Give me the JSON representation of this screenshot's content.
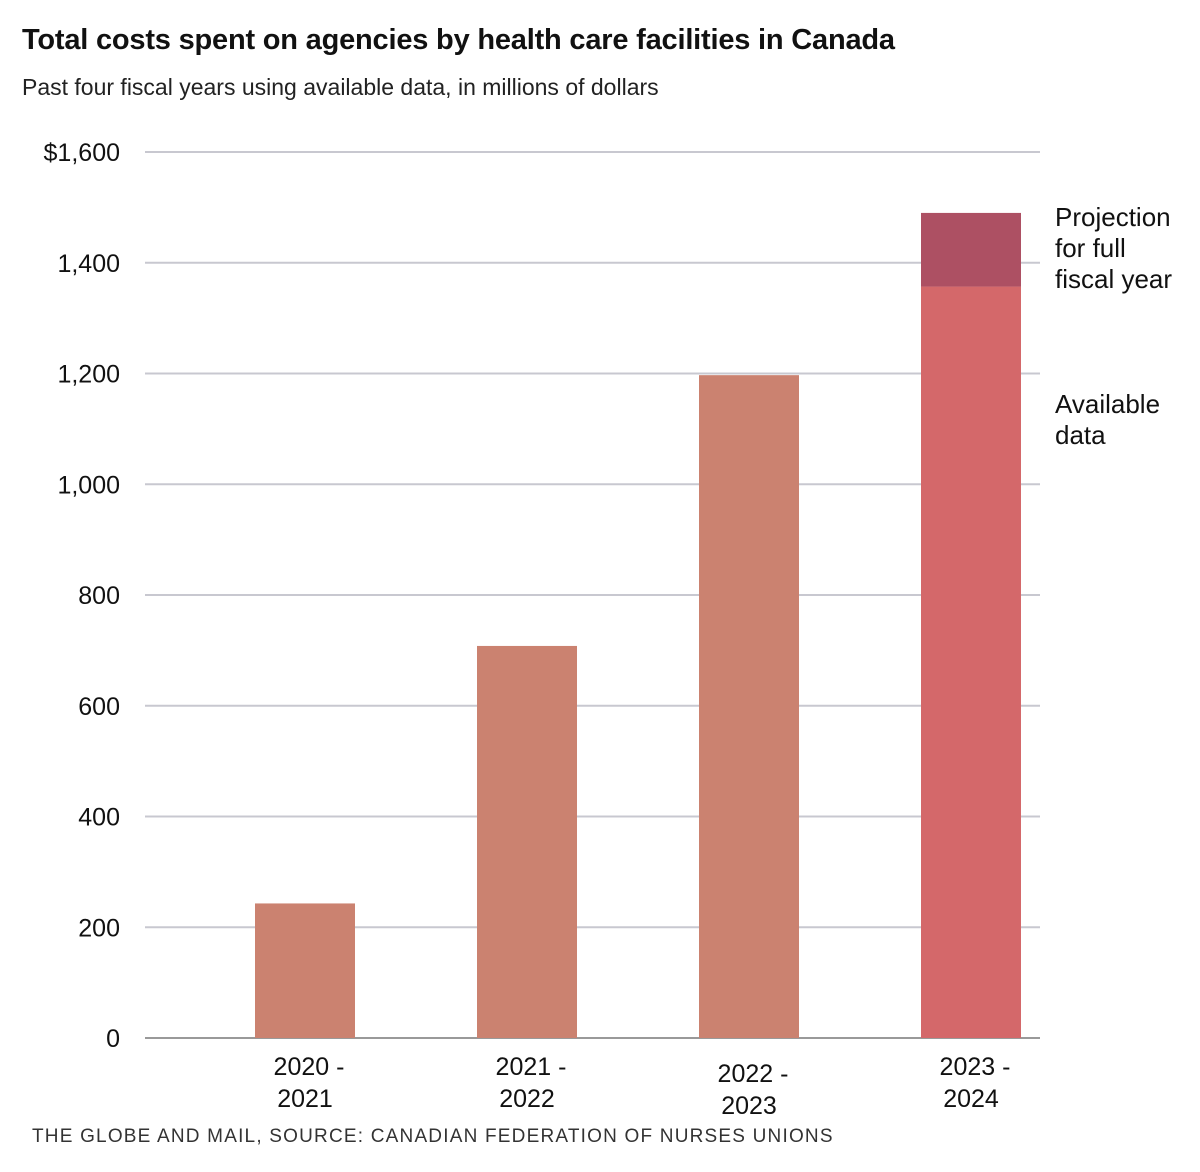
{
  "chart_data": {
    "type": "bar",
    "title": "Total costs spent on agencies by health care facilities in Canada",
    "subtitle": "Past four fiscal years using available data, in millions of dollars",
    "categories": [
      "2020 - 2021",
      "2021 - 2022",
      "2022 - 2023",
      "2023 - 2024"
    ],
    "category_lines": [
      [
        "2020 -",
        "2021"
      ],
      [
        "2021 -",
        "2022"
      ],
      [
        "2022 -",
        "2023"
      ],
      [
        "2023 -",
        "2024"
      ]
    ],
    "series": [
      {
        "name": "Available data",
        "values": [
          243,
          708,
          1197,
          1357
        ],
        "color": "#cb8270",
        "highlight_color": "#d4686a"
      },
      {
        "name": "Projection for full fiscal year",
        "values": [
          0,
          0,
          0,
          133
        ],
        "color": "#ad5063"
      }
    ],
    "y_ticks": [
      0,
      200,
      400,
      600,
      800,
      1000,
      1200,
      1400,
      1600
    ],
    "y_tick_labels": [
      "0",
      "200",
      "400",
      "600",
      "800",
      "1,000",
      "1,200",
      "1,400",
      "$1,600"
    ],
    "ylim": [
      0,
      1600
    ],
    "xlabel": "",
    "ylabel": "",
    "grid": true,
    "annotations": {
      "projection": [
        "Projection",
        "for full",
        "fiscal year"
      ],
      "available": [
        "Available",
        "data"
      ]
    }
  },
  "colors": {
    "grid": "#c8c8d0",
    "baseline": "#999999"
  },
  "source": "THE GLOBE AND MAIL, SOURCE: CANADIAN FEDERATION OF NURSES UNIONS"
}
